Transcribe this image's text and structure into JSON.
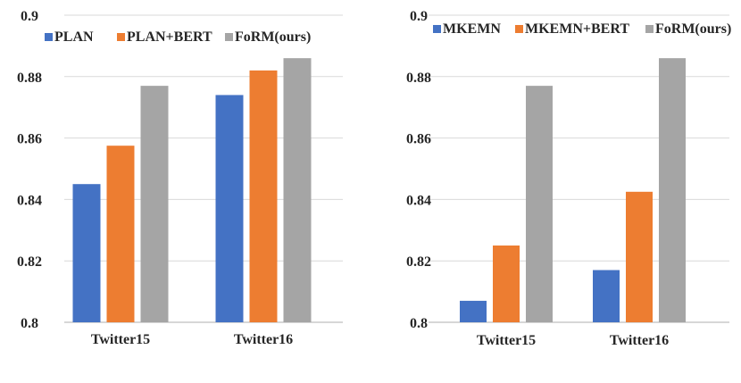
{
  "colors": {
    "blue": "#4472C4",
    "orange": "#ED7D31",
    "gray": "#A5A5A5",
    "grid": "#D9D9D9",
    "text": "#262626"
  },
  "chart_data": [
    {
      "type": "bar",
      "title": "",
      "xlabel": "",
      "ylabel": "",
      "categories": [
        "Twitter15",
        "Twitter16"
      ],
      "series": [
        {
          "name": "PLAN",
          "color": "#4472C4",
          "values": [
            0.845,
            0.874
          ]
        },
        {
          "name": "PLAN+BERT",
          "color": "#ED7D31",
          "values": [
            0.8575,
            0.882
          ]
        },
        {
          "name": "FoRM(ours)",
          "color": "#A5A5A5",
          "values": [
            0.877,
            0.886
          ]
        }
      ],
      "ylim": [
        0.8,
        0.9
      ],
      "yticks": [
        "0.8",
        "0.82",
        "0.84",
        "0.86",
        "0.88",
        "0.9"
      ],
      "grid": true,
      "legend": "top"
    },
    {
      "type": "bar",
      "title": "",
      "xlabel": "",
      "ylabel": "",
      "categories": [
        "Twitter15",
        "Twitter16"
      ],
      "series": [
        {
          "name": "MKEMN",
          "color": "#4472C4",
          "values": [
            0.807,
            0.817
          ]
        },
        {
          "name": "MKEMN+BERT",
          "color": "#ED7D31",
          "values": [
            0.825,
            0.8425
          ]
        },
        {
          "name": "FoRM(ours)",
          "color": "#A5A5A5",
          "values": [
            0.877,
            0.886
          ]
        }
      ],
      "ylim": [
        0.8,
        0.9
      ],
      "yticks": [
        "0.8",
        "0.82",
        "0.84",
        "0.86",
        "0.88",
        "0.9"
      ],
      "grid": true,
      "legend": "top"
    }
  ]
}
